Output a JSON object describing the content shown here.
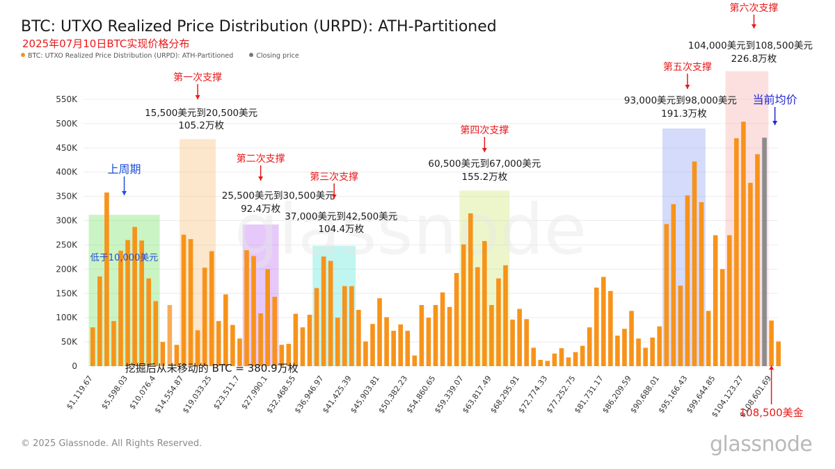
{
  "header": {
    "title": "BTC: UTXO Realized Price Distribution (URPD): ATH-Partitioned",
    "subtitle": "2025年07月10日BTC实现价格分布"
  },
  "legend": {
    "items": [
      {
        "label": "BTC: UTXO Realized Price Distribution (URPD): ATH-Partitioned",
        "color": "#f7931a"
      },
      {
        "label": "Closing price",
        "color": "#777777"
      }
    ]
  },
  "footer": {
    "copyright": "© 2025 Glassnode. All Rights Reserved.",
    "logo": "glassnode",
    "watermark": "glassnode"
  },
  "chart_data": {
    "type": "bar",
    "ylim": [
      0,
      550000
    ],
    "y_ticks": [
      {
        "value": 0,
        "label": "0"
      },
      {
        "value": 50000,
        "label": "50K"
      },
      {
        "value": 100000,
        "label": "100K"
      },
      {
        "value": 150000,
        "label": "150K"
      },
      {
        "value": 200000,
        "label": "200K"
      },
      {
        "value": 250000,
        "label": "250K"
      },
      {
        "value": 300000,
        "label": "300K"
      },
      {
        "value": 350000,
        "label": "350K"
      },
      {
        "value": 400000,
        "label": "400K"
      },
      {
        "value": 450000,
        "label": "450K"
      },
      {
        "value": 500000,
        "label": "500K"
      },
      {
        "value": 550000,
        "label": "550K"
      }
    ],
    "x_tick_labels": [
      {
        "index": 0,
        "label": "$1,119.67"
      },
      {
        "index": 5,
        "label": "$5,598.03"
      },
      {
        "index": 9,
        "label": "$10,076.4"
      },
      {
        "index": 13,
        "label": "$14,554.87"
      },
      {
        "index": 17,
        "label": "$19,033.25"
      },
      {
        "index": 21,
        "label": "$23,511.7"
      },
      {
        "index": 25,
        "label": "$27,990.1"
      },
      {
        "index": 29,
        "label": "$32,468.55"
      },
      {
        "index": 33,
        "label": "$36,946.97"
      },
      {
        "index": 37,
        "label": "$41,425.39"
      },
      {
        "index": 41,
        "label": "$45,903.81"
      },
      {
        "index": 45,
        "label": "$50,382.23"
      },
      {
        "index": 49,
        "label": "$54,860.65"
      },
      {
        "index": 53,
        "label": "$59,339.07"
      },
      {
        "index": 57,
        "label": "$63,817.49"
      },
      {
        "index": 61,
        "label": "$68,295.91"
      },
      {
        "index": 65,
        "label": "$72,774.33"
      },
      {
        "index": 69,
        "label": "$77,252.75"
      },
      {
        "index": 73,
        "label": "$81,731.17"
      },
      {
        "index": 77,
        "label": "$86,209.59"
      },
      {
        "index": 81,
        "label": "$90,688.01"
      },
      {
        "index": 85,
        "label": "$95,166.43"
      },
      {
        "index": 89,
        "label": "$99,644.85"
      },
      {
        "index": 93,
        "label": "$104,123.27"
      },
      {
        "index": 97,
        "label": "$108,601.69"
      }
    ],
    "bars": [
      {
        "v": 80000,
        "c": "o"
      },
      {
        "v": 185000,
        "c": "o"
      },
      {
        "v": 358000,
        "c": "o"
      },
      {
        "v": 93000,
        "c": "o"
      },
      {
        "v": 238000,
        "c": "o"
      },
      {
        "v": 260000,
        "c": "o"
      },
      {
        "v": 287000,
        "c": "o"
      },
      {
        "v": 259000,
        "c": "o"
      },
      {
        "v": 181000,
        "c": "o"
      },
      {
        "v": 134000,
        "c": "o"
      },
      {
        "v": 50000,
        "c": "o"
      },
      {
        "v": 126000,
        "c": "l"
      },
      {
        "v": 44000,
        "c": "o"
      },
      {
        "v": 271000,
        "c": "o"
      },
      {
        "v": 262000,
        "c": "o"
      },
      {
        "v": 74000,
        "c": "o"
      },
      {
        "v": 203000,
        "c": "o"
      },
      {
        "v": 237000,
        "c": "o"
      },
      {
        "v": 93000,
        "c": "o"
      },
      {
        "v": 148000,
        "c": "o"
      },
      {
        "v": 85000,
        "c": "o"
      },
      {
        "v": 57000,
        "c": "o"
      },
      {
        "v": 239000,
        "c": "o"
      },
      {
        "v": 227000,
        "c": "o"
      },
      {
        "v": 109000,
        "c": "o"
      },
      {
        "v": 200000,
        "c": "o"
      },
      {
        "v": 143000,
        "c": "o"
      },
      {
        "v": 44000,
        "c": "o"
      },
      {
        "v": 46000,
        "c": "o"
      },
      {
        "v": 108000,
        "c": "o"
      },
      {
        "v": 80000,
        "c": "o"
      },
      {
        "v": 106000,
        "c": "o"
      },
      {
        "v": 161000,
        "c": "o"
      },
      {
        "v": 226000,
        "c": "o"
      },
      {
        "v": 217000,
        "c": "o"
      },
      {
        "v": 100000,
        "c": "o"
      },
      {
        "v": 165000,
        "c": "o"
      },
      {
        "v": 165000,
        "c": "o"
      },
      {
        "v": 116000,
        "c": "o"
      },
      {
        "v": 51000,
        "c": "o"
      },
      {
        "v": 87000,
        "c": "o"
      },
      {
        "v": 140000,
        "c": "o"
      },
      {
        "v": 101000,
        "c": "o"
      },
      {
        "v": 73000,
        "c": "o"
      },
      {
        "v": 86000,
        "c": "o"
      },
      {
        "v": 73000,
        "c": "o"
      },
      {
        "v": 22000,
        "c": "o"
      },
      {
        "v": 126000,
        "c": "o"
      },
      {
        "v": 100000,
        "c": "o"
      },
      {
        "v": 126000,
        "c": "o"
      },
      {
        "v": 152000,
        "c": "o"
      },
      {
        "v": 122000,
        "c": "o"
      },
      {
        "v": 192000,
        "c": "o"
      },
      {
        "v": 251000,
        "c": "o"
      },
      {
        "v": 315000,
        "c": "o"
      },
      {
        "v": 204000,
        "c": "o"
      },
      {
        "v": 258000,
        "c": "o"
      },
      {
        "v": 126000,
        "c": "o"
      },
      {
        "v": 181000,
        "c": "o"
      },
      {
        "v": 208000,
        "c": "o"
      },
      {
        "v": 96000,
        "c": "o"
      },
      {
        "v": 118000,
        "c": "o"
      },
      {
        "v": 97000,
        "c": "o"
      },
      {
        "v": 38000,
        "c": "o"
      },
      {
        "v": 13000,
        "c": "o"
      },
      {
        "v": 11000,
        "c": "o"
      },
      {
        "v": 26000,
        "c": "o"
      },
      {
        "v": 37000,
        "c": "o"
      },
      {
        "v": 18000,
        "c": "o"
      },
      {
        "v": 29000,
        "c": "o"
      },
      {
        "v": 42000,
        "c": "o"
      },
      {
        "v": 80000,
        "c": "o"
      },
      {
        "v": 162000,
        "c": "o"
      },
      {
        "v": 184000,
        "c": "o"
      },
      {
        "v": 155000,
        "c": "o"
      },
      {
        "v": 63000,
        "c": "o"
      },
      {
        "v": 77000,
        "c": "o"
      },
      {
        "v": 114000,
        "c": "o"
      },
      {
        "v": 57000,
        "c": "o"
      },
      {
        "v": 38000,
        "c": "o"
      },
      {
        "v": 59000,
        "c": "o"
      },
      {
        "v": 82000,
        "c": "o"
      },
      {
        "v": 293000,
        "c": "o"
      },
      {
        "v": 334000,
        "c": "o"
      },
      {
        "v": 166000,
        "c": "o"
      },
      {
        "v": 352000,
        "c": "o"
      },
      {
        "v": 422000,
        "c": "o"
      },
      {
        "v": 338000,
        "c": "o"
      },
      {
        "v": 114000,
        "c": "o"
      },
      {
        "v": 270000,
        "c": "o"
      },
      {
        "v": 200000,
        "c": "o"
      },
      {
        "v": 270000,
        "c": "o"
      },
      {
        "v": 470000,
        "c": "o"
      },
      {
        "v": 504000,
        "c": "o"
      },
      {
        "v": 378000,
        "c": "o"
      },
      {
        "v": 437000,
        "c": "o"
      },
      {
        "v": 471000,
        "c": "g"
      },
      {
        "v": 94000,
        "c": "o"
      },
      {
        "v": 51000,
        "c": "o"
      }
    ],
    "bar_colors": {
      "o": "#f7931a",
      "l": "#f9ab57",
      "g": "#8c8c8c"
    },
    "highlight_zones": [
      {
        "from": 0,
        "to": 9,
        "color": "#5cdc46",
        "ymax": 312000
      },
      {
        "from": 13,
        "to": 17,
        "color": "#f7b060",
        "ymax": 468000
      },
      {
        "from": 22,
        "to": 26,
        "color": "#b158ee",
        "ymax": 292000
      },
      {
        "from": 32,
        "to": 37,
        "color": "#3ee0cc",
        "ymax": 248000
      },
      {
        "from": 53,
        "to": 59,
        "color": "#c8e25e",
        "ymax": 362000
      },
      {
        "from": 82,
        "to": 87,
        "color": "#7d8eee",
        "ymax": 490000
      },
      {
        "from": 91,
        "to": 96,
        "color": "#f7a0a0",
        "ymax": 608000
      }
    ],
    "annotations": [
      {
        "text": "上周期",
        "color": "#1f4fd8",
        "size": 16,
        "bi": 4.5,
        "dy": -278,
        "arrow": "down",
        "arrow_color": "#1f4fd8",
        "arrow_len": 27
      },
      {
        "text": "低于10,000美元",
        "color": "#1f4fd8",
        "size": 13,
        "bi": 4.5,
        "dy": -152
      },
      {
        "text": "第一次支撑",
        "color": "#e8191a",
        "size": 14,
        "bi": 15.0,
        "dy": -411,
        "arrow": "down",
        "arrow_color": "#e8191a",
        "arrow_len": 22
      },
      {
        "text": "15,500美元到20,500美元",
        "color": "#1a1a1a",
        "size": 13.5,
        "bi": 15.5,
        "dy": -360
      },
      {
        "text": "105.2万枚",
        "color": "#1a1a1a",
        "size": 13.5,
        "bi": 15.5,
        "dy": -342
      },
      {
        "text": "第二次支撑",
        "color": "#e8191a",
        "size": 14,
        "bi": 24.0,
        "dy": -294,
        "arrow": "down",
        "arrow_color": "#e8191a",
        "arrow_len": 22
      },
      {
        "text": "25,500美元到30,500美元",
        "color": "#1a1a1a",
        "size": 13.5,
        "bi": 26.5,
        "dy": -241
      },
      {
        "text": "92.4万枚",
        "color": "#1a1a1a",
        "size": 13.5,
        "bi": 24.0,
        "dy": -222
      },
      {
        "text": "第三次支撑",
        "color": "#e8191a",
        "size": 14,
        "bi": 34.5,
        "dy": -268,
        "arrow": "down",
        "arrow_color": "#e8191a",
        "arrow_len": 22
      },
      {
        "text": "37,000美元到42,500美元",
        "color": "#1a1a1a",
        "size": 13.5,
        "bi": 35.5,
        "dy": -211
      },
      {
        "text": "104.4万枚",
        "color": "#1a1a1a",
        "size": 13.5,
        "bi": 35.5,
        "dy": -193
      },
      {
        "text": "第四次支撑",
        "color": "#e8191a",
        "size": 14,
        "bi": 56.0,
        "dy": -335,
        "arrow": "down",
        "arrow_color": "#e8191a",
        "arrow_len": 22
      },
      {
        "text": "60,500美元到67,000美元",
        "color": "#1a1a1a",
        "size": 13.5,
        "bi": 56.0,
        "dy": -287
      },
      {
        "text": "155.2万枚",
        "color": "#1a1a1a",
        "size": 13.5,
        "bi": 56.0,
        "dy": -268
      },
      {
        "text": "第五次支撑",
        "color": "#e8191a",
        "size": 14,
        "bi": 85.0,
        "dy": -426,
        "arrow": "down",
        "arrow_color": "#e8191a",
        "arrow_len": 22
      },
      {
        "text": "93,000美元到98,000美元",
        "color": "#1a1a1a",
        "size": 13.5,
        "bi": 84.0,
        "dy": -378
      },
      {
        "text": "191.3万枚",
        "color": "#1a1a1a",
        "size": 13.5,
        "bi": 84.5,
        "dy": -359
      },
      {
        "text": "第六次支撑",
        "color": "#e8191a",
        "size": 14,
        "bi": 94.5,
        "dy": -511,
        "arrow": "down",
        "arrow_color": "#e8191a",
        "arrow_len": 20
      },
      {
        "text": "104,000美元到108,500美元",
        "color": "#1a1a1a",
        "size": 13.5,
        "bi": 94.0,
        "dy": -457
      },
      {
        "text": "226.8万枚",
        "color": "#1a1a1a",
        "size": 13.5,
        "bi": 94.5,
        "dy": -438
      },
      {
        "text": "当前均价",
        "color": "#1f24d8",
        "size": 16,
        "bi": 97.5,
        "dy": -378,
        "arrow": "down",
        "arrow_color": "#1f24d8",
        "arrow_len": 26
      },
      {
        "text": "挖掘后从未移动的 BTC = 380.9万枚",
        "color": "#1a1a1a",
        "size": 15,
        "bi": 17.0,
        "dy": 8
      },
      {
        "text": "108,500美金",
        "color": "#e8191a",
        "size": 15,
        "bi": 97.0,
        "dy": 72,
        "arrow": "up",
        "arrow_color": "#e8191a",
        "arrow_len": 56
      }
    ]
  }
}
